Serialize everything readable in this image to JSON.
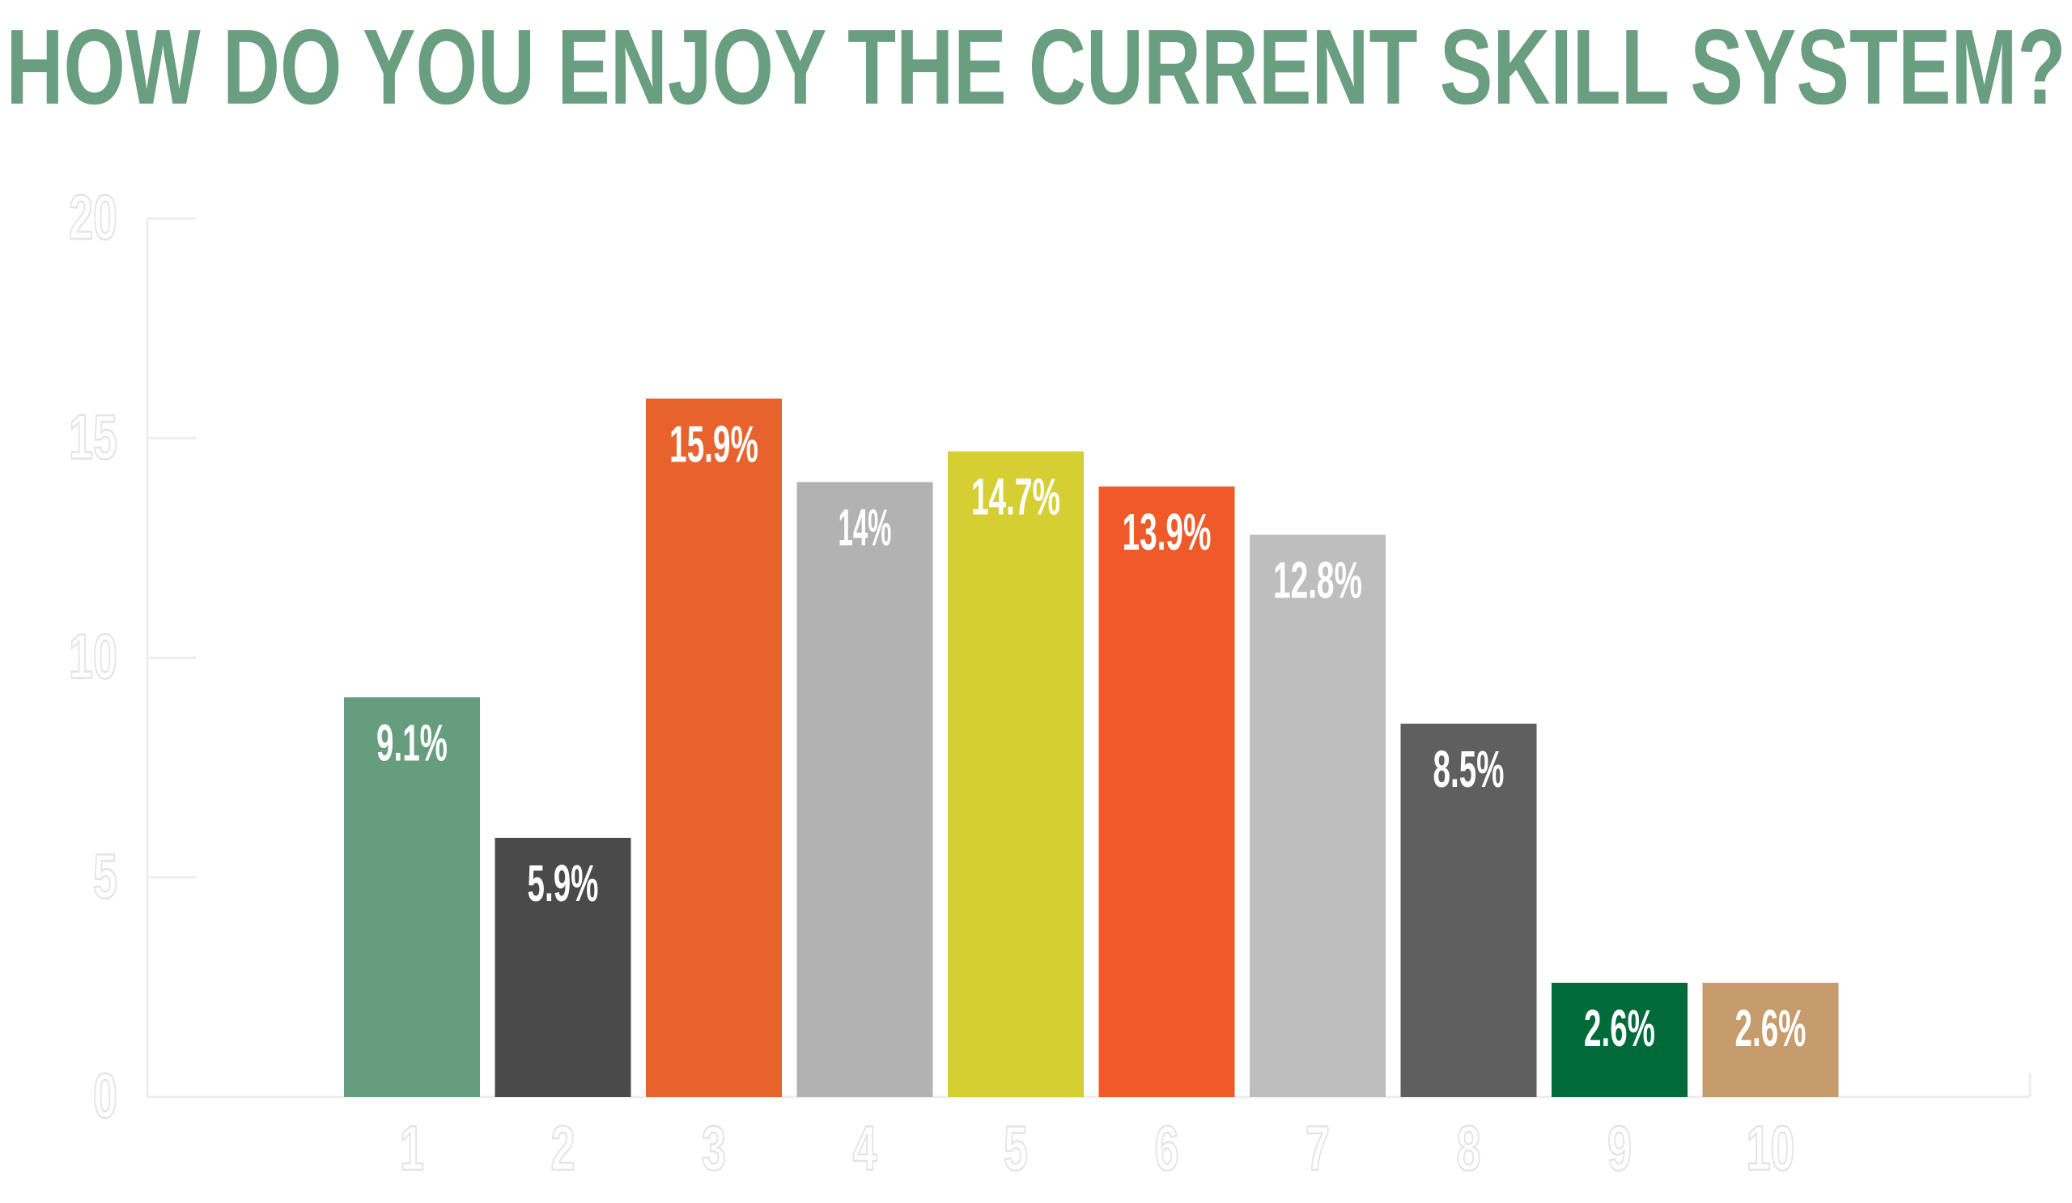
{
  "chart_data": {
    "type": "bar",
    "title": "HOW DO YOU ENJOY THE CURRENT SKILL SYSTEM?",
    "xlabel": "",
    "ylabel": "",
    "categories": [
      "1",
      "2",
      "3",
      "4",
      "5",
      "6",
      "7",
      "8",
      "9",
      "10"
    ],
    "values": [
      9.1,
      5.9,
      15.9,
      14.0,
      14.7,
      13.9,
      12.8,
      8.5,
      2.6,
      2.6
    ],
    "data_labels": [
      "9.1%",
      "5.9%",
      "15.9%",
      "14%",
      "14.7%",
      "13.9%",
      "12.8%",
      "8.5%",
      "2.6%",
      "2.6%"
    ],
    "bar_colors": [
      "#679d7f",
      "#4a4a4a",
      "#e8622e",
      "#b2b2b2",
      "#d6cf33",
      "#ef5a28",
      "#bebebe",
      "#5f5f5f",
      "#006b3a",
      "#c69c6d"
    ],
    "ylim": [
      0,
      20
    ],
    "yticks": [
      0,
      5,
      10,
      15,
      20
    ],
    "grid": false,
    "legend": "none",
    "colors": {
      "title": "#6a9e80",
      "axis": "#eeeeee",
      "tick_label": "#ffffff",
      "tick_label_outline": "#e4e4e4",
      "data_label": "#ffffff"
    }
  }
}
